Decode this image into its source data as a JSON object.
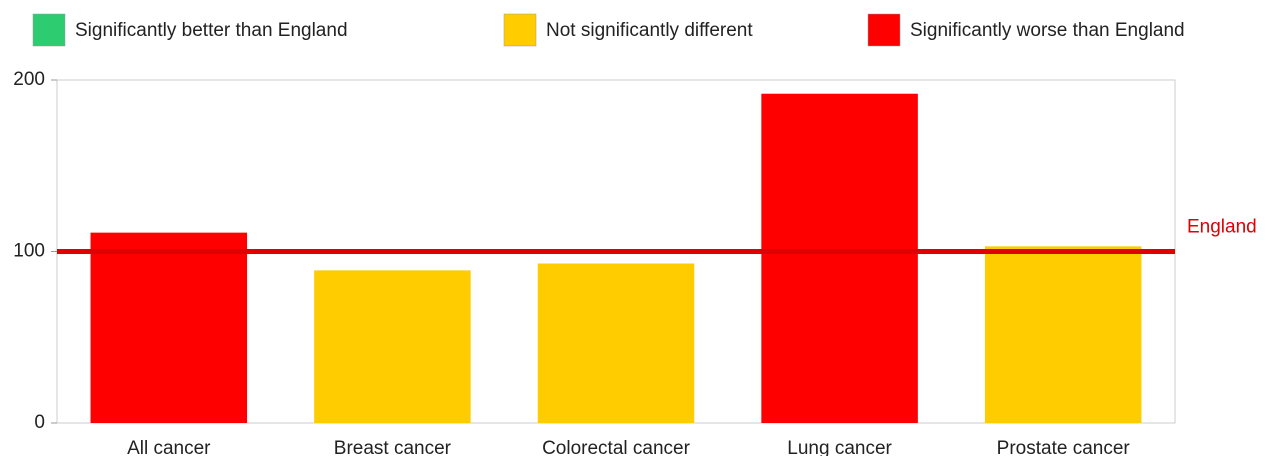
{
  "chart_data": {
    "type": "bar",
    "legend": [
      {
        "name": "Significantly better than England",
        "color": "#2ecc71"
      },
      {
        "name": "Not significantly different",
        "color": "#ffcc00"
      },
      {
        "name": "Significantly worse than England",
        "color": "#ff0000"
      }
    ],
    "categories": [
      "All cancer",
      "Breast cancer",
      "Colorectal cancer",
      "Lung cancer",
      "Prostate cancer"
    ],
    "values": [
      111,
      89,
      93,
      192,
      103
    ],
    "colors": [
      "#ff0000",
      "#ffcc00",
      "#ffcc00",
      "#ff0000",
      "#ffcc00"
    ],
    "ylim": [
      0,
      200
    ],
    "yticks": [
      0,
      100,
      200
    ],
    "reference_line": {
      "label": "England",
      "value": 100,
      "color": "#e00000"
    }
  }
}
